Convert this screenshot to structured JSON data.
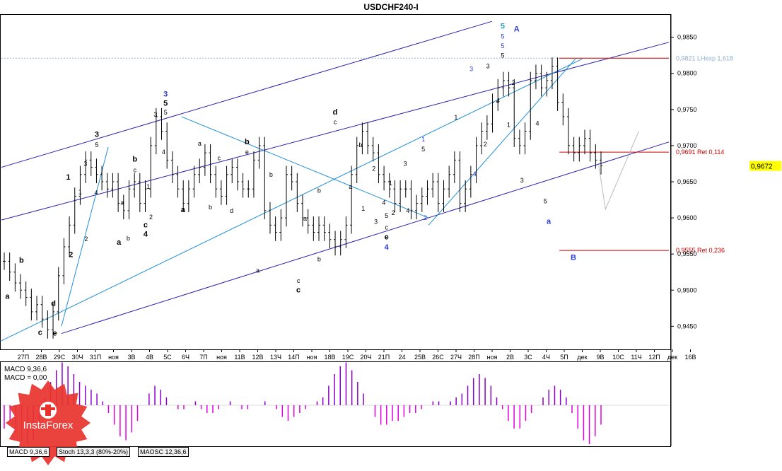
{
  "title": "USDCHF240-I",
  "colors": {
    "price": "#000000",
    "channel_dark": "#2a1fb0",
    "channel_light": "#1e8fd6",
    "retrace": "#cc0000",
    "wave_blue": "#2a3bd6",
    "wave_teal": "#2aa0b8",
    "macd_pos": "#8b00c8",
    "macd_neg": "#e000e0",
    "current_box": "#ffff00",
    "logo": "#e8332c"
  },
  "price_axis": {
    "ticks": [
      "0,9850",
      "0,9800",
      "0,9750",
      "0,9700",
      "0,9650",
      "0,9600",
      "0,9550",
      "0,9500",
      "0,9450"
    ],
    "tick_values": [
      0.985,
      0.98,
      0.975,
      0.97,
      0.965,
      0.96,
      0.955,
      0.95,
      0.945
    ],
    "current": "0,9672",
    "current_value": 0.9672,
    "range": [
      0.942,
      0.988
    ]
  },
  "date_axis": {
    "labels": [
      "27П",
      "28В",
      "29С",
      "30Ч",
      "31П",
      "ноя",
      "3В",
      "4В",
      "5С",
      "6Ч",
      "7П",
      "ноя",
      "11В",
      "12В",
      "13Ч",
      "14П",
      "ноя",
      "18В",
      "19С",
      "20Ч",
      "21П",
      "24",
      "25В",
      "26С",
      "27Ч",
      "28П",
      "ноя",
      "2В",
      "3С",
      "4Ч",
      "5П",
      "дек",
      "9В",
      "10С",
      "11Ч",
      "12П",
      "дек",
      "16В"
    ]
  },
  "levels": [
    {
      "label": "0,9821 LНexp 1,618",
      "value": 0.9821
    },
    {
      "label": "0,9691 Ret 0,114",
      "value": 0.9691
    },
    {
      "label": "0,9555 Ret 0,236",
      "value": 0.9555
    }
  ],
  "chart_data": {
    "type": "line",
    "series": [
      {
        "values": [
          0.954,
          0.9525,
          0.951,
          0.95,
          0.949,
          0.947,
          0.948,
          0.946,
          0.9445,
          0.947,
          0.952,
          0.956,
          0.959,
          0.963,
          0.966,
          0.968,
          0.967,
          0.966,
          0.965,
          0.964,
          0.965,
          0.962,
          0.961,
          0.964,
          0.965,
          0.962,
          0.964,
          0.97,
          0.974,
          0.972,
          0.968,
          0.966,
          0.964,
          0.962,
          0.964,
          0.966,
          0.967,
          0.969,
          0.966,
          0.964,
          0.963,
          0.966,
          0.967,
          0.965,
          0.964,
          0.964,
          0.968,
          0.97,
          0.961,
          0.959,
          0.958,
          0.96,
          0.966,
          0.965,
          0.962,
          0.96,
          0.959,
          0.958,
          0.959,
          0.958,
          0.957,
          0.956,
          0.957,
          0.959,
          0.966,
          0.97,
          0.972,
          0.97,
          0.969,
          0.966,
          0.965,
          0.964,
          0.962,
          0.964,
          0.964,
          0.961,
          0.962,
          0.963,
          0.964,
          0.965,
          0.962,
          0.964,
          0.966,
          0.968,
          0.962,
          0.964,
          0.966,
          0.97,
          0.972,
          0.973,
          0.976,
          0.978,
          0.979,
          0.978,
          0.971,
          0.97,
          0.972,
          0.979,
          0.98,
          0.978,
          0.979,
          0.981,
          0.976,
          0.974,
          0.97,
          0.969,
          0.97,
          0.971,
          0.969,
          0.968,
          0.9672
        ]
      }
    ],
    "macd": {
      "label": "MACD 9,36,6",
      "label2": "MACD = 0,00",
      "values": [
        -0.6,
        -0.4,
        -0.7,
        -0.9,
        -1.0,
        -0.9,
        -0.5,
        0.2,
        0.6,
        0.9,
        1.1,
        1.0,
        0.8,
        0.6,
        0.5,
        0.4,
        0.3,
        0.1,
        -0.2,
        -0.5,
        -0.8,
        -0.9,
        -0.7,
        -0.4,
        0.0,
        0.3,
        0.5,
        0.4,
        0.2,
        0.0,
        -0.1,
        -0.1,
        0.0,
        0.1,
        -0.1,
        -0.2,
        -0.2,
        -0.1,
        0.0,
        0.1,
        0.0,
        -0.1,
        -0.1,
        0.0,
        0.0,
        0.1,
        0.0,
        -0.1,
        -0.3,
        -0.4,
        -0.3,
        -0.2,
        -0.1,
        0.0,
        0.1,
        0.2,
        0.5,
        0.8,
        1.0,
        1.1,
        0.9,
        0.6,
        0.3,
        0.0,
        -0.3,
        -0.5,
        -0.5,
        -0.4,
        -0.4,
        -0.3,
        -0.2,
        -0.2,
        -0.1,
        0.0,
        0.1,
        0.1,
        0.0,
        0.1,
        0.2,
        0.3,
        0.5,
        0.7,
        0.8,
        0.7,
        0.5,
        0.2,
        -0.1,
        -0.4,
        -0.6,
        -0.6,
        -0.4,
        -0.2,
        0.0,
        0.2,
        0.4,
        0.5,
        0.4,
        0.2,
        -0.2,
        -0.6,
        -0.9,
        -1.0,
        -0.8,
        -0.5
      ]
    },
    "annotations": [
      {
        "text": "a",
        "x": 0.009,
        "y": 0.9488,
        "color": "black",
        "bold": true
      },
      {
        "text": "b",
        "x": 0.03,
        "y": 0.9538,
        "color": "black",
        "bold": true
      },
      {
        "text": "c",
        "x": 0.058,
        "y": 0.9438,
        "color": "black",
        "bold": true
      },
      {
        "text": "d",
        "x": 0.078,
        "y": 0.9478,
        "color": "black",
        "bold": true
      },
      {
        "text": "e",
        "x": 0.08,
        "y": 0.9437,
        "color": "black",
        "bold": true
      },
      {
        "text": "2",
        "x": 0.104,
        "y": 0.9546,
        "color": "black",
        "bold": true
      },
      {
        "text": "1",
        "x": 0.1,
        "y": 0.9653,
        "color": "black",
        "bold": true
      },
      {
        "text": "3",
        "x": 0.143,
        "y": 0.9712,
        "color": "black",
        "bold": true
      },
      {
        "text": "5",
        "x": 0.143,
        "y": 0.9698,
        "color": "black",
        "bold": false
      },
      {
        "text": "3",
        "x": 0.126,
        "y": 0.9672,
        "color": "black",
        "bold": false
      },
      {
        "text": "4",
        "x": 0.142,
        "y": 0.9632,
        "color": "black",
        "bold": false
      },
      {
        "text": "1",
        "x": 0.118,
        "y": 0.9633,
        "color": "black",
        "bold": false
      },
      {
        "text": "2",
        "x": 0.127,
        "y": 0.9568,
        "color": "black",
        "bold": false
      },
      {
        "text": "a",
        "x": 0.176,
        "y": 0.9563,
        "color": "black",
        "bold": true
      },
      {
        "text": "b",
        "x": 0.19,
        "y": 0.9569,
        "color": "black",
        "bold": false
      },
      {
        "text": "a",
        "x": 0.181,
        "y": 0.9618,
        "color": "black",
        "bold": false
      },
      {
        "text": "b",
        "x": 0.2,
        "y": 0.9678,
        "color": "black",
        "bold": true
      },
      {
        "text": "c",
        "x": 0.2,
        "y": 0.9663,
        "color": "black",
        "bold": false
      },
      {
        "text": "1",
        "x": 0.22,
        "y": 0.964,
        "color": "black",
        "bold": false
      },
      {
        "text": "2",
        "x": 0.224,
        "y": 0.9598,
        "color": "black",
        "bold": false
      },
      {
        "text": "c",
        "x": 0.216,
        "y": 0.9587,
        "color": "black",
        "bold": true
      },
      {
        "text": "4",
        "x": 0.216,
        "y": 0.9574,
        "color": "black",
        "bold": true
      },
      {
        "text": "3",
        "x": 0.231,
        "y": 0.974,
        "color": "black",
        "bold": false
      },
      {
        "text": "3",
        "x": 0.246,
        "y": 0.9768,
        "color": "wave_blue",
        "bold": true
      },
      {
        "text": "5",
        "x": 0.246,
        "y": 0.9755,
        "color": "black",
        "bold": true
      },
      {
        "text": "5",
        "x": 0.246,
        "y": 0.9743,
        "color": "black",
        "bold": false
      },
      {
        "text": "4",
        "x": 0.243,
        "y": 0.9688,
        "color": "black",
        "bold": false
      },
      {
        "text": "a",
        "x": 0.272,
        "y": 0.9608,
        "color": "black",
        "bold": true
      },
      {
        "text": "a",
        "x": 0.297,
        "y": 0.97,
        "color": "black",
        "bold": false
      },
      {
        "text": "c",
        "x": 0.326,
        "y": 0.968,
        "color": "black",
        "bold": false
      },
      {
        "text": "b",
        "x": 0.313,
        "y": 0.9612,
        "color": "black",
        "bold": false
      },
      {
        "text": "d",
        "x": 0.345,
        "y": 0.9607,
        "color": "black",
        "bold": false
      },
      {
        "text": "b",
        "x": 0.368,
        "y": 0.9702,
        "color": "black",
        "bold": true
      },
      {
        "text": "e",
        "x": 0.368,
        "y": 0.9688,
        "color": "black",
        "bold": false
      },
      {
        "text": "b",
        "x": 0.404,
        "y": 0.9657,
        "color": "black",
        "bold": false
      },
      {
        "text": "a",
        "x": 0.384,
        "y": 0.9524,
        "color": "black",
        "bold": false
      },
      {
        "text": "c",
        "x": 0.445,
        "y": 0.951,
        "color": "black",
        "bold": false
      },
      {
        "text": "c",
        "x": 0.445,
        "y": 0.9497,
        "color": "black",
        "bold": true
      },
      {
        "text": "a",
        "x": 0.455,
        "y": 0.9596,
        "color": "black",
        "bold": false
      },
      {
        "text": "b",
        "x": 0.476,
        "y": 0.9635,
        "color": "black",
        "bold": false
      },
      {
        "text": "b",
        "x": 0.476,
        "y": 0.954,
        "color": "black",
        "bold": false
      },
      {
        "text": "d",
        "x": 0.5,
        "y": 0.9743,
        "color": "black",
        "bold": true
      },
      {
        "text": "c",
        "x": 0.5,
        "y": 0.973,
        "color": "black",
        "bold": false
      },
      {
        "text": "a",
        "x": 0.523,
        "y": 0.964,
        "color": "black",
        "bold": false
      },
      {
        "text": "b",
        "x": 0.538,
        "y": 0.9698,
        "color": "black",
        "bold": false
      },
      {
        "text": "2",
        "x": 0.558,
        "y": 0.9665,
        "color": "black",
        "bold": false
      },
      {
        "text": "1",
        "x": 0.542,
        "y": 0.961,
        "color": "black",
        "bold": false
      },
      {
        "text": "3",
        "x": 0.561,
        "y": 0.9592,
        "color": "black",
        "bold": false
      },
      {
        "text": "5",
        "x": 0.577,
        "y": 0.96,
        "color": "black",
        "bold": false
      },
      {
        "text": "c",
        "x": 0.577,
        "y": 0.9584,
        "color": "black",
        "bold": false
      },
      {
        "text": "e",
        "x": 0.577,
        "y": 0.957,
        "color": "black",
        "bold": true
      },
      {
        "text": "4",
        "x": 0.577,
        "y": 0.9556,
        "color": "wave_blue",
        "bold": true
      },
      {
        "text": "2",
        "x": 0.587,
        "y": 0.9604,
        "color": "black",
        "bold": false
      },
      {
        "text": "4",
        "x": 0.573,
        "y": 0.9618,
        "color": "black",
        "bold": false
      },
      {
        "text": "1",
        "x": 0.583,
        "y": 0.9645,
        "color": "black",
        "bold": false
      },
      {
        "text": "3",
        "x": 0.605,
        "y": 0.9672,
        "color": "black",
        "bold": false
      },
      {
        "text": "4",
        "x": 0.609,
        "y": 0.9607,
        "color": "black",
        "bold": false
      },
      {
        "text": "1",
        "x": 0.632,
        "y": 0.9706,
        "color": "wave_blue",
        "bold": false
      },
      {
        "text": "5",
        "x": 0.632,
        "y": 0.9692,
        "color": "black",
        "bold": false
      },
      {
        "text": "2",
        "x": 0.635,
        "y": 0.9597,
        "color": "wave_blue",
        "bold": false
      },
      {
        "text": "1",
        "x": 0.681,
        "y": 0.9736,
        "color": "black",
        "bold": false
      },
      {
        "text": "3",
        "x": 0.704,
        "y": 0.9803,
        "color": "wave_blue",
        "bold": false
      },
      {
        "text": "3",
        "x": 0.729,
        "y": 0.9807,
        "color": "black",
        "bold": false
      },
      {
        "text": "4",
        "x": 0.709,
        "y": 0.9658,
        "color": "wave_blue",
        "bold": false
      },
      {
        "text": "2",
        "x": 0.725,
        "y": 0.9699,
        "color": "black",
        "bold": false
      },
      {
        "text": "5",
        "x": 0.751,
        "y": 0.9862,
        "color": "wave_teal",
        "bold": true
      },
      {
        "text": "5",
        "x": 0.751,
        "y": 0.9848,
        "color": "wave_blue",
        "bold": false
      },
      {
        "text": "5",
        "x": 0.751,
        "y": 0.9835,
        "color": "wave_blue",
        "bold": false
      },
      {
        "text": "5",
        "x": 0.751,
        "y": 0.9822,
        "color": "black",
        "bold": false
      },
      {
        "text": "A",
        "x": 0.772,
        "y": 0.9858,
        "color": "wave_blue",
        "bold": true
      },
      {
        "text": "4",
        "x": 0.744,
        "y": 0.9759,
        "color": "black",
        "bold": false
      },
      {
        "text": "2",
        "x": 0.767,
        "y": 0.9784,
        "color": "black",
        "bold": false
      },
      {
        "text": "1",
        "x": 0.76,
        "y": 0.9726,
        "color": "black",
        "bold": false
      },
      {
        "text": "4",
        "x": 0.803,
        "y": 0.9728,
        "color": "black",
        "bold": false
      },
      {
        "text": "3",
        "x": 0.78,
        "y": 0.9649,
        "color": "black",
        "bold": false
      },
      {
        "text": "5",
        "x": 0.815,
        "y": 0.962,
        "color": "black",
        "bold": false
      },
      {
        "text": "a",
        "x": 0.82,
        "y": 0.9592,
        "color": "wave_blue",
        "bold": true
      },
      {
        "text": "B",
        "x": 0.857,
        "y": 0.9542,
        "color": "wave_blue",
        "bold": true
      }
    ]
  },
  "tabs": [
    {
      "label": "MACD 9,36,6",
      "active": true
    },
    {
      "label": "Stoch 13,3,3 (80%-20%)",
      "active": false
    },
    {
      "label": "MAOSC 12,36,6",
      "active": false
    }
  ],
  "logo": {
    "text": "InstaForex"
  }
}
